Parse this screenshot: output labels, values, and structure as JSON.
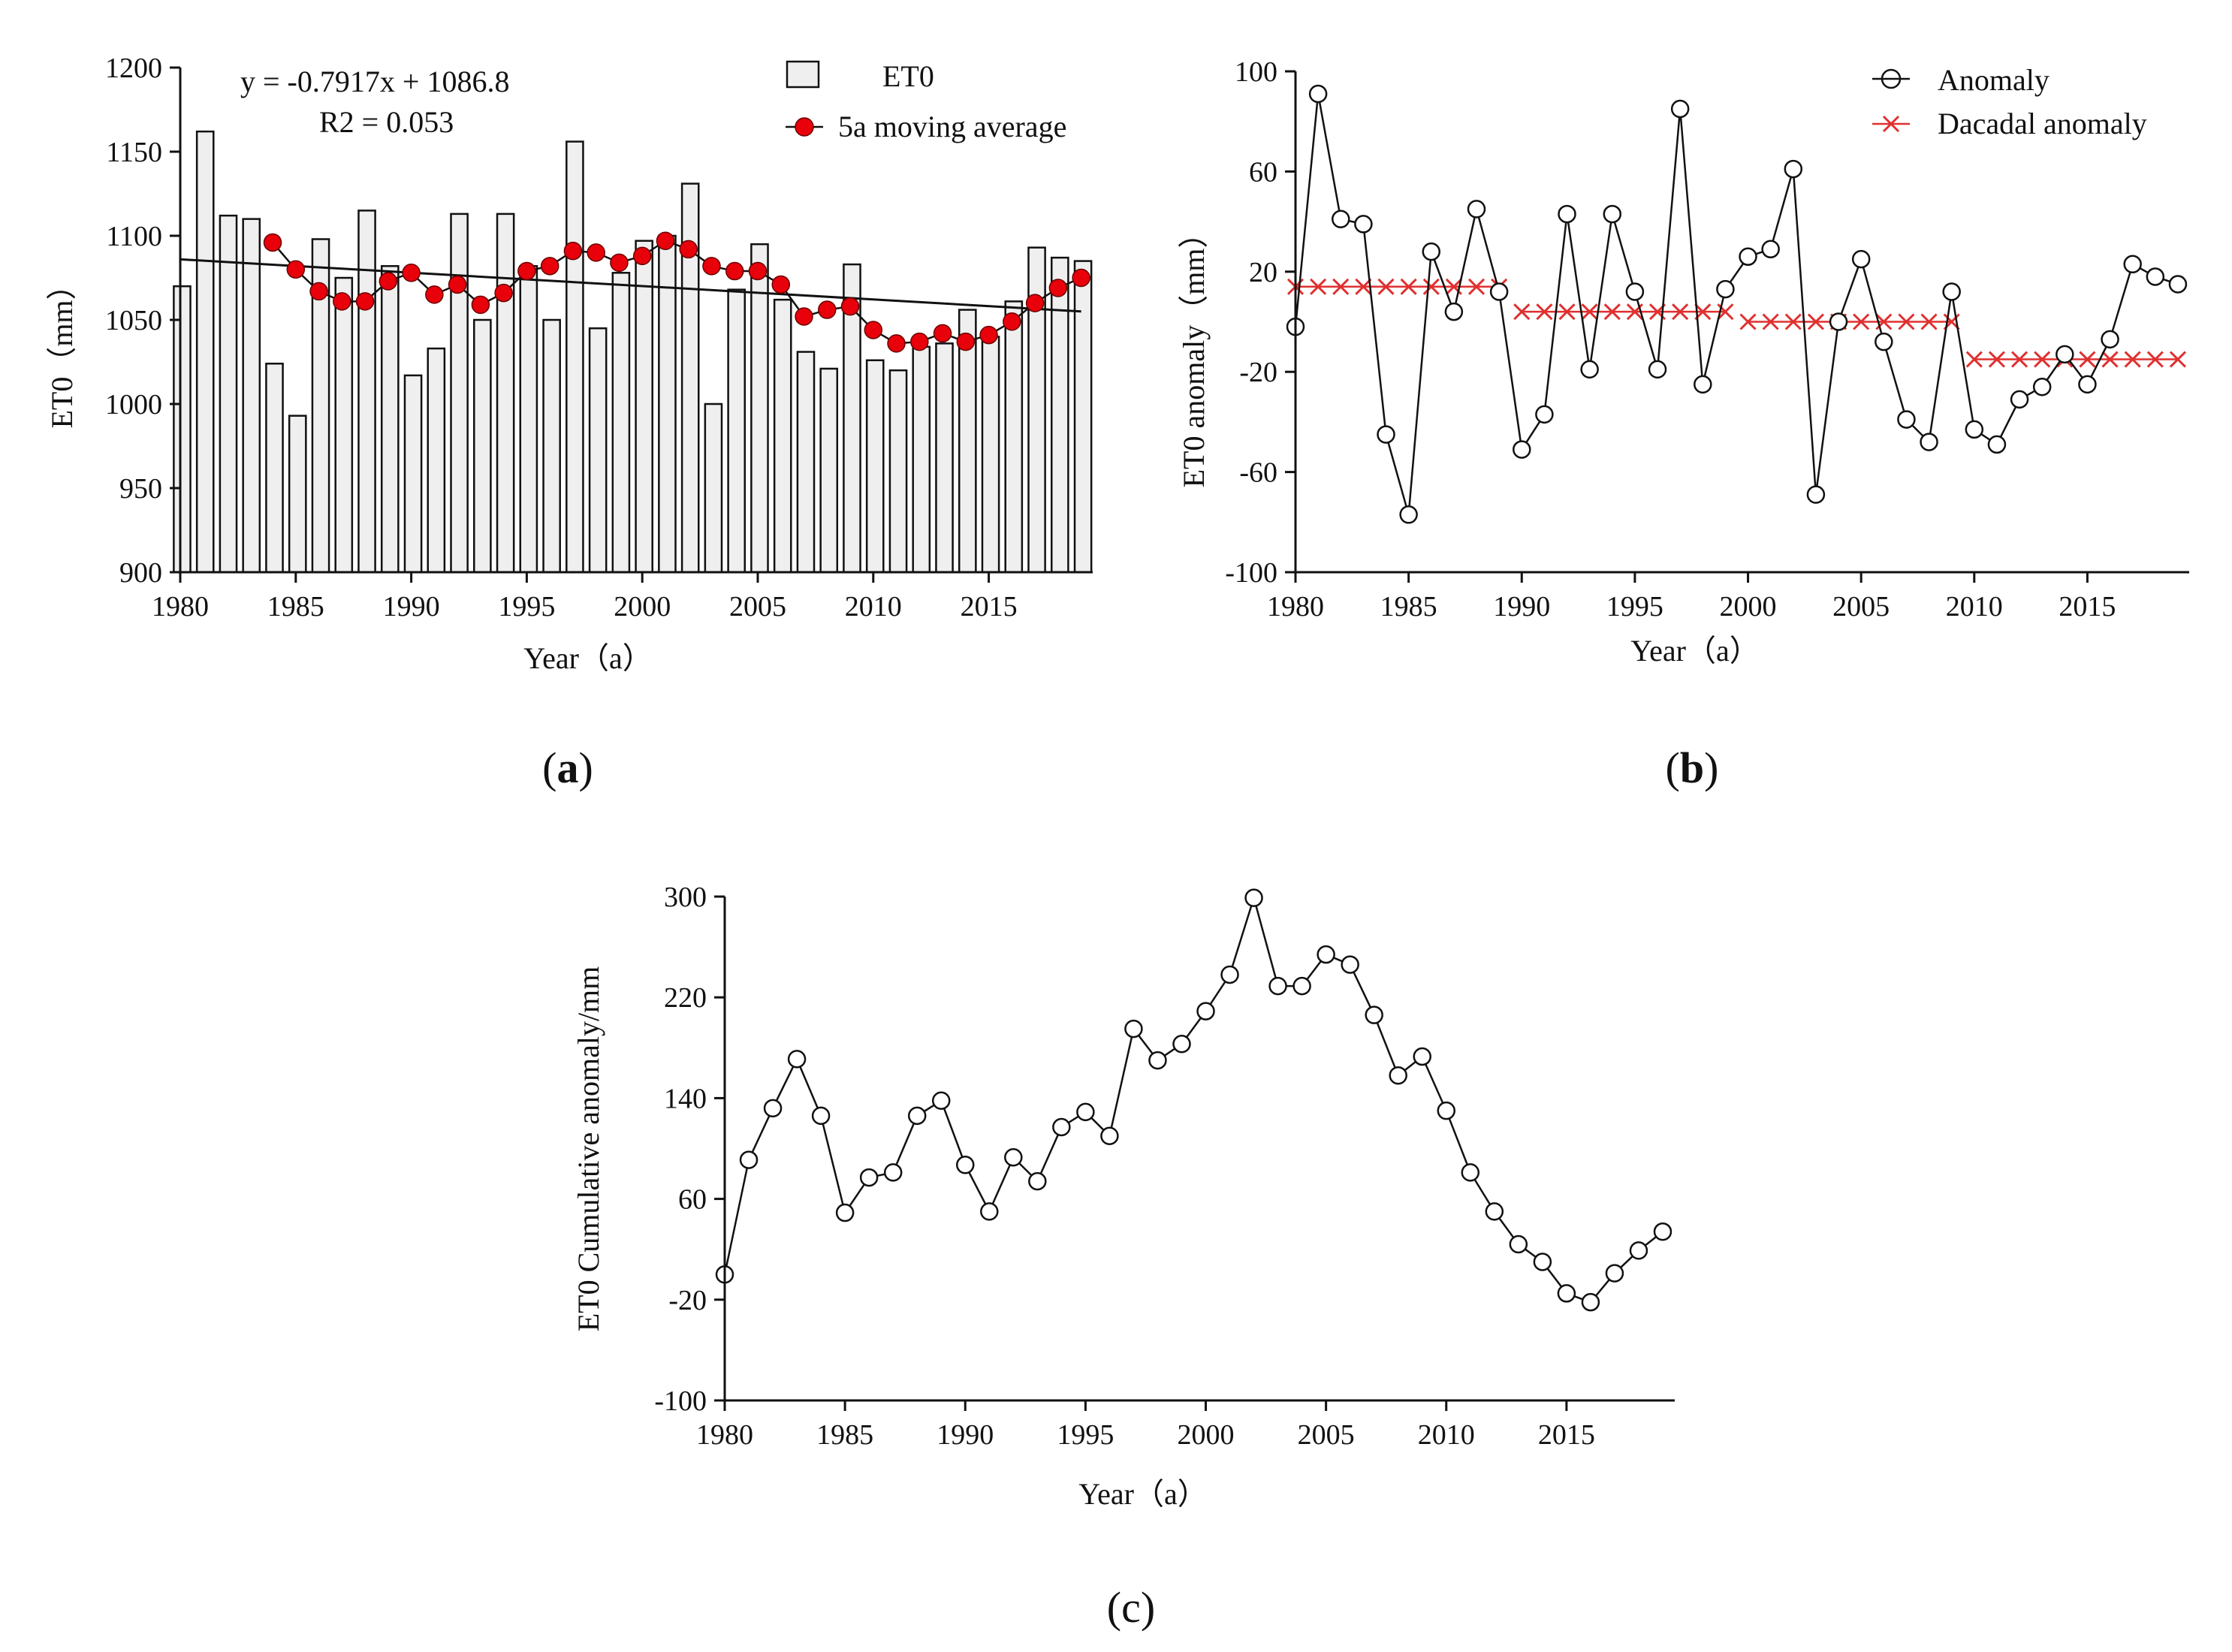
{
  "chart_data": [
    {
      "id": "a",
      "type": "bar",
      "panel_label": "a",
      "x": [
        1980,
        1981,
        1982,
        1983,
        1984,
        1985,
        1986,
        1987,
        1988,
        1989,
        1990,
        1991,
        1992,
        1993,
        1994,
        1995,
        1996,
        1997,
        1998,
        1999,
        2000,
        2001,
        2002,
        2003,
        2004,
        2005,
        2006,
        2007,
        2008,
        2009,
        2010,
        2011,
        2012,
        2013,
        2014,
        2015,
        2016,
        2017,
        2018,
        2019
      ],
      "series": [
        {
          "name": "ET0",
          "kind": "bar",
          "values": [
            1070,
            1162,
            1112,
            1110,
            1024,
            993,
            1098,
            1075,
            1115,
            1082,
            1017,
            1033,
            1113,
            1050,
            1113,
            1082,
            1050,
            1156,
            1045,
            1078,
            1097,
            1100,
            1131,
            1000,
            1068,
            1095,
            1062,
            1031,
            1021,
            1083,
            1026,
            1020,
            1034,
            1036,
            1056,
            1040,
            1061,
            1093,
            1087,
            1085
          ]
        },
        {
          "name": "5a moving average",
          "kind": "line",
          "x": [
            1984,
            1985,
            1986,
            1987,
            1988,
            1989,
            1990,
            1991,
            1992,
            1993,
            1994,
            1995,
            1996,
            1997,
            1998,
            1999,
            2000,
            2001,
            2002,
            2003,
            2004,
            2005,
            2006,
            2007,
            2008,
            2009,
            2010,
            2011,
            2012,
            2013,
            2014,
            2015,
            2016,
            2017,
            2018,
            2019
          ],
          "values": [
            1096,
            1080,
            1067,
            1061,
            1061,
            1073,
            1078,
            1065,
            1071,
            1059,
            1066,
            1079,
            1082,
            1091,
            1090,
            1084,
            1088,
            1097,
            1092,
            1082,
            1079,
            1079,
            1071,
            1052,
            1056,
            1058,
            1044,
            1036,
            1037,
            1042,
            1037,
            1041,
            1049,
            1060,
            1069,
            1075
          ]
        }
      ],
      "trendline": {
        "x": [
          1980,
          2019
        ],
        "values": [
          1086,
          1055
        ]
      },
      "ylim": [
        900,
        1200
      ],
      "yticks": [
        900,
        950,
        1000,
        1050,
        1100,
        1150,
        1200
      ],
      "xticks": [
        1980,
        1985,
        1990,
        1995,
        2000,
        2005,
        2010,
        2015
      ],
      "xlabel": "Year（a）",
      "ylabel": "ET0（mm）",
      "equation": "y = -0.7917x + 1086.8",
      "r2": "R2 = 0.053",
      "legend": [
        "ET0",
        "5a moving average"
      ],
      "legend_position": "top-right",
      "grid": false
    },
    {
      "id": "b",
      "type": "line",
      "panel_label": "b",
      "x": [
        1980,
        1981,
        1982,
        1983,
        1984,
        1985,
        1986,
        1987,
        1988,
        1989,
        1990,
        1991,
        1992,
        1993,
        1994,
        1995,
        1996,
        1997,
        1998,
        1999,
        2000,
        2001,
        2002,
        2003,
        2004,
        2005,
        2006,
        2007,
        2008,
        2009,
        2010,
        2011,
        2012,
        2013,
        2014,
        2015,
        2016,
        2017,
        2018,
        2019
      ],
      "series": [
        {
          "name": "Anomaly",
          "marker": "open-circle",
          "values": [
            -2,
            91,
            41,
            39,
            -45,
            -77,
            28,
            4,
            45,
            12,
            -51,
            -37,
            43,
            -19,
            43,
            12,
            -19,
            85,
            -25,
            13,
            26,
            29,
            61,
            -69,
            0,
            25,
            -8,
            -39,
            -48,
            12,
            -43,
            -49,
            -31,
            -26,
            -13,
            -25,
            -7,
            23,
            18,
            15
          ]
        },
        {
          "name": "Dacadal anomaly",
          "marker": "x",
          "values": [
            14,
            14,
            14,
            14,
            14,
            14,
            14,
            14,
            14,
            14,
            4,
            4,
            4,
            4,
            4,
            4,
            4,
            4,
            4,
            4,
            0,
            0,
            0,
            0,
            0,
            0,
            0,
            0,
            0,
            0,
            -15,
            -15,
            -15,
            -15,
            -15,
            -15,
            -15,
            -15,
            -15,
            -15
          ]
        }
      ],
      "ylim": [
        -100,
        100
      ],
      "yticks": [
        -100,
        -60,
        -20,
        20,
        60,
        100
      ],
      "xticks": [
        1980,
        1985,
        1990,
        1995,
        2000,
        2005,
        2010,
        2015
      ],
      "xlabel": "Year（a）",
      "ylabel": "ET0 anomaly（mm）",
      "legend": [
        "Anomaly",
        "Dacadal anomaly"
      ],
      "legend_position": "top-right",
      "grid": false
    },
    {
      "id": "c",
      "type": "line",
      "panel_label": "c",
      "x": [
        1980,
        1981,
        1982,
        1983,
        1984,
        1985,
        1986,
        1987,
        1988,
        1989,
        1990,
        1991,
        1992,
        1993,
        1994,
        1995,
        1996,
        1997,
        1998,
        1999,
        2000,
        2001,
        2002,
        2003,
        2004,
        2005,
        2006,
        2007,
        2008,
        2009,
        2010,
        2011,
        2012,
        2013,
        2014,
        2015,
        2016,
        2017,
        2018,
        2019
      ],
      "series": [
        {
          "name": "",
          "marker": "open-circle",
          "values": [
            0,
            91,
            132,
            171,
            126,
            49,
            77,
            81,
            126,
            138,
            87,
            50,
            93,
            74,
            117,
            129,
            110,
            195,
            170,
            183,
            209,
            238,
            299,
            229,
            229,
            254,
            246,
            206,
            158,
            173,
            130,
            81,
            50,
            24,
            10,
            -15,
            -22,
            1,
            19,
            34
          ]
        }
      ],
      "ylim": [
        -100,
        300
      ],
      "yticks": [
        -100,
        -20,
        60,
        140,
        220,
        300
      ],
      "xticks": [
        1980,
        1985,
        1990,
        1995,
        2000,
        2005,
        2010,
        2015
      ],
      "xlabel": "Year（a）",
      "ylabel": "ET0 Cumulative anomaly/mm",
      "grid": false
    }
  ],
  "colors": {
    "axis": "#111111",
    "bar_fill": "#efefef",
    "moving_avg": "#e8000b",
    "decadal": "#e03030",
    "line": "#111111"
  }
}
